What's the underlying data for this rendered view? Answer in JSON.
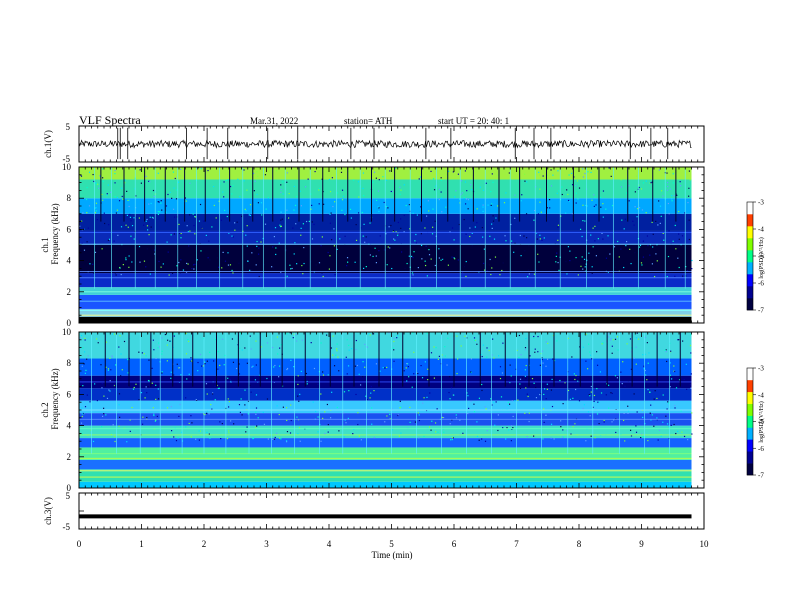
{
  "header": {
    "title": "VLF  Spectra",
    "date": "Mar.31, 2022",
    "station": "station= ATH",
    "start": "start  UT  =    20: 40: 1"
  },
  "chart_data": [
    {
      "type": "line",
      "panel": "ch1-waveform",
      "ylabel": "ch.1(V)",
      "y_ticks": [
        "5",
        "-5"
      ],
      "ylim": [
        -5,
        5
      ],
      "xlim": [
        0,
        10
      ],
      "x_ticks": [
        "0",
        "1",
        "2",
        "3",
        "4",
        "5",
        "6",
        "7",
        "8",
        "9",
        "10"
      ],
      "data_end_min": 9.8,
      "baseline_v": 0,
      "noise_amplitude_v": 1,
      "spike_times_min": [
        0.62,
        0.66,
        0.78,
        1.72,
        2.05,
        2.38,
        3.02,
        3.5,
        4.35,
        4.72,
        5.55,
        5.95,
        6.98,
        7.28,
        7.55,
        8.82,
        9.15,
        9.42
      ]
    },
    {
      "type": "heatmap",
      "panel": "ch1-spectrogram",
      "ylabel": "Frequency  (kHz)",
      "channel_label": "ch.1",
      "xlim": [
        0,
        10
      ],
      "ylim": [
        0,
        10
      ],
      "y_ticks": [
        "0",
        "2",
        "4",
        "6",
        "8",
        "10"
      ],
      "data_end_min": 9.8,
      "color_ramp": [
        "#000040",
        "#000090",
        "#0000ff",
        "#00b0ff",
        "#00ff88",
        "#80ff00",
        "#ffff00",
        "#ff4000",
        "#ffffff"
      ],
      "colorbar": {
        "label": "log(PSD)(V²/Hz)",
        "ticks": [
          "-3",
          "-4",
          "-5",
          "-6",
          "-7"
        ],
        "range": [
          -7,
          -3
        ]
      },
      "freq_bands_khz": [
        {
          "from": 0.0,
          "to": 0.4,
          "color": "#000000"
        },
        {
          "from": 0.4,
          "to": 0.9,
          "color": "#7fd0e8"
        },
        {
          "from": 0.9,
          "to": 1.8,
          "color": "#1a55ff"
        },
        {
          "from": 1.8,
          "to": 2.3,
          "color": "#3fd0d8"
        },
        {
          "from": 2.3,
          "to": 3.2,
          "color": "#0a2ac8"
        },
        {
          "from": 3.2,
          "to": 5.0,
          "color": "#00003c"
        },
        {
          "from": 5.0,
          "to": 5.9,
          "color": "#0a2ab8"
        },
        {
          "from": 5.9,
          "to": 7.0,
          "color": "#0020a0"
        },
        {
          "from": 7.0,
          "to": 8.0,
          "color": "#00a8ff"
        },
        {
          "from": 8.0,
          "to": 9.2,
          "color": "#30e0b0"
        },
        {
          "from": 9.2,
          "to": 10.0,
          "color": "#a0f040"
        }
      ],
      "lines_khz": [
        {
          "f": 0.5,
          "color": "#ffff80"
        },
        {
          "f": 0.8,
          "color": "#80ffff"
        },
        {
          "f": 1.4,
          "color": "#60c0ff"
        },
        {
          "f": 2.0,
          "color": "#80ffe0"
        },
        {
          "f": 2.9,
          "color": "#5080ff"
        },
        {
          "f": 3.3,
          "color": "#6090ff"
        },
        {
          "f": 5.05,
          "color": "#80e0ff"
        },
        {
          "f": 5.8,
          "color": "#3060ff"
        }
      ],
      "dark_streak_times_min": [
        0.35,
        0.72,
        1.05,
        1.38,
        1.69,
        2.02,
        2.41,
        2.78,
        3.1,
        3.52,
        3.9,
        4.3,
        4.68,
        5.05,
        5.48,
        5.9,
        6.31,
        6.72,
        7.05,
        7.48,
        7.91,
        8.32,
        8.78,
        9.18,
        9.55
      ],
      "bright_streak_times_min": [
        0.25,
        0.52,
        0.9,
        1.22,
        1.58,
        1.88,
        2.25,
        2.62,
        2.95,
        3.3,
        3.7,
        4.12,
        4.5,
        4.9,
        5.3,
        5.72,
        6.1,
        6.5,
        6.9,
        7.3,
        7.7,
        8.12,
        8.55,
        8.95,
        9.38,
        9.7
      ]
    },
    {
      "type": "heatmap",
      "panel": "ch2-spectrogram",
      "ylabel": "Frequency  (kHz)",
      "channel_label": "ch.2",
      "xlim": [
        0,
        10
      ],
      "ylim": [
        0,
        10
      ],
      "y_ticks": [
        "0",
        "2",
        "4",
        "6",
        "8",
        "10"
      ],
      "data_end_min": 9.8,
      "colorbar": {
        "label": "log(PSD)(V²/Hz)",
        "ticks": [
          "-3",
          "-4",
          "-5",
          "-6",
          "-7"
        ],
        "range": [
          -7,
          -3
        ]
      },
      "freq_bands_khz": [
        {
          "from": 0.0,
          "to": 0.4,
          "color": "#00c8ff"
        },
        {
          "from": 0.4,
          "to": 1.2,
          "color": "#30e0b0"
        },
        {
          "from": 1.2,
          "to": 1.8,
          "color": "#1a70ff"
        },
        {
          "from": 1.8,
          "to": 2.6,
          "color": "#50f0a0"
        },
        {
          "from": 2.6,
          "to": 3.2,
          "color": "#1460ff"
        },
        {
          "from": 3.2,
          "to": 4.0,
          "color": "#40e0c8"
        },
        {
          "from": 4.0,
          "to": 4.8,
          "color": "#1a50f0"
        },
        {
          "from": 4.8,
          "to": 5.6,
          "color": "#38c8ff"
        },
        {
          "from": 5.6,
          "to": 6.4,
          "color": "#0030c8"
        },
        {
          "from": 6.4,
          "to": 7.2,
          "color": "#000080"
        },
        {
          "from": 7.2,
          "to": 8.3,
          "color": "#0060ff"
        },
        {
          "from": 8.3,
          "to": 10.0,
          "color": "#40d8e0"
        }
      ],
      "lines_khz": [
        {
          "f": 0.7,
          "color": "#e0ff40"
        },
        {
          "f": 1.1,
          "color": "#ffff60"
        },
        {
          "f": 1.9,
          "color": "#c0ff40"
        },
        {
          "f": 2.2,
          "color": "#80ff80"
        },
        {
          "f": 3.4,
          "color": "#a0ff60"
        },
        {
          "f": 3.8,
          "color": "#60ffc0"
        },
        {
          "f": 4.4,
          "color": "#6090ff"
        },
        {
          "f": 5.0,
          "color": "#80e0ff"
        },
        {
          "f": 6.8,
          "color": "#3050ff"
        }
      ],
      "dark_streak_times_min": [
        0.42,
        0.8,
        1.15,
        1.5,
        1.82,
        2.2,
        2.55,
        2.9,
        3.25,
        3.62,
        4.02,
        4.4,
        4.8,
        5.18,
        5.6,
        6.0,
        6.42,
        6.82,
        7.2,
        7.6,
        8.02,
        8.45,
        8.85,
        9.25,
        9.62
      ],
      "bright_streak_times_min": [
        0.2,
        0.6,
        0.98,
        1.3,
        1.65,
        2.0,
        2.35,
        2.72,
        3.08,
        3.45,
        3.85,
        4.22,
        4.6,
        5.0,
        5.4,
        5.8,
        6.2,
        6.6,
        7.0,
        7.4,
        7.82,
        8.22,
        8.65,
        9.05,
        9.45
      ]
    },
    {
      "type": "line",
      "panel": "ch3-waveform",
      "ylabel": "ch.3(V)",
      "y_ticks": [
        "5",
        "-5"
      ],
      "ylim": [
        -5,
        5
      ],
      "xlim": [
        0,
        10
      ],
      "x_ticks": [
        "0",
        "1",
        "2",
        "3",
        "4",
        "5",
        "6",
        "7",
        "8",
        "9",
        "10"
      ],
      "xlabel": "Time  (min)",
      "data_end_min": 9.8,
      "baseline_v": -1.5
    }
  ]
}
